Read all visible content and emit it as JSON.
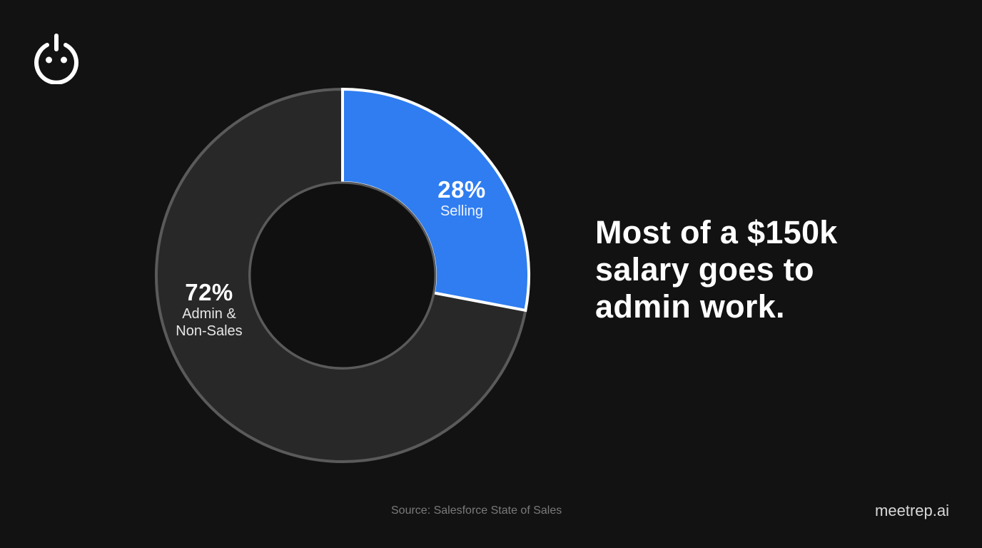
{
  "logo": {
    "icon": "power-face-icon"
  },
  "headline": {
    "lines": [
      "Most of a $150k",
      "salary goes to",
      "admin work."
    ]
  },
  "footer": {
    "source": "Source: Salesforce State of Sales",
    "brand": "meetrep.ai"
  },
  "colors": {
    "background": "#121212",
    "selling": "#2F7DF0",
    "admin": "#282828",
    "admin_stroke": "#5a5a5a",
    "selling_stroke": "#ffffff",
    "hole": "#101010"
  },
  "chart_data": {
    "type": "pie",
    "variant": "donut",
    "title": "Most of a $150k salary goes to admin work.",
    "categories": [
      "Selling",
      "Admin & Non-Sales"
    ],
    "values": [
      28,
      72
    ],
    "unit": "%",
    "labels": [
      {
        "category": "Selling",
        "value_label": "28%",
        "name_label": "Selling"
      },
      {
        "category": "Admin & Non-Sales",
        "value_label": "72%",
        "name_label_lines": [
          "Admin &",
          "Non-Sales"
        ]
      }
    ],
    "start_angle": "12 o'clock, clockwise",
    "legend": "none (inline labels)",
    "source": "Salesforce State of Sales"
  }
}
